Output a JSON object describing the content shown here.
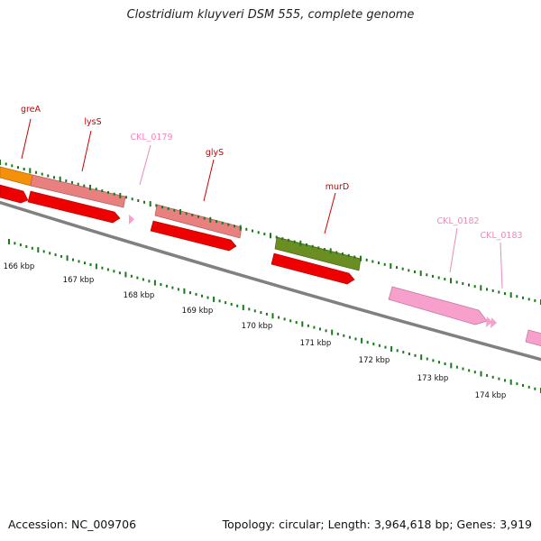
{
  "title": "Clostridium kluyveri DSM 555, complete genome",
  "footer": {
    "accession": "Accession: NC_009706",
    "info": "Topology: circular; Length: 3,964,618 bp; Genes: 3,919"
  },
  "colors": {
    "gene_label_red": "#cc0000",
    "gene_label_pink": "#ee88bb",
    "cds_red": "#ee0000",
    "gene_salmon": "#e88080",
    "gene_orange": "#f5900a",
    "gene_olive": "#6b8e23",
    "gene_pink": "#f7a0cc",
    "tick_green": "#1a7a1a",
    "backbone_gray": "#808080"
  },
  "gene_labels": [
    {
      "name": "greA",
      "kind": "gene"
    },
    {
      "name": "lysS",
      "kind": "gene"
    },
    {
      "name": "CKL_0179",
      "kind": "other"
    },
    {
      "name": "glyS",
      "kind": "gene"
    },
    {
      "name": "murD",
      "kind": "gene"
    },
    {
      "name": "CKL_0182",
      "kind": "other"
    },
    {
      "name": "CKL_0183",
      "kind": "other"
    }
  ],
  "tick_labels": [
    "166 kbp",
    "167 kbp",
    "168 kbp",
    "169 kbp",
    "170 kbp",
    "171 kbp",
    "172 kbp",
    "173 kbp",
    "174 kbp"
  ]
}
